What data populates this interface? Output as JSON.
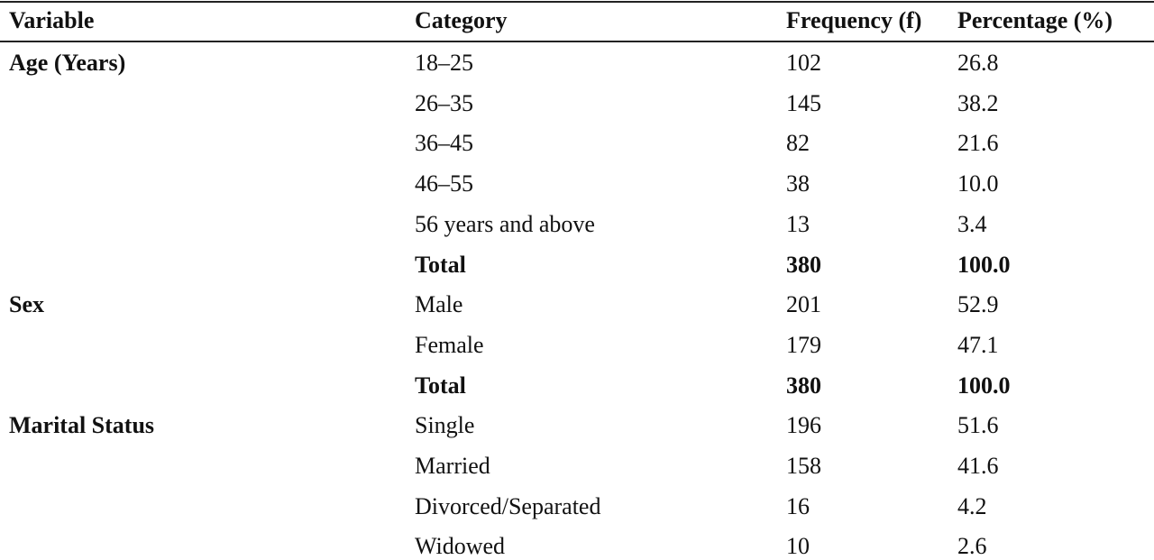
{
  "table": {
    "header": [
      "Variable",
      "Category",
      "Frequency (f)",
      "Percentage (%)"
    ],
    "rows": [
      {
        "variable": "Age (Years)",
        "category": "18–25",
        "frequency": 102,
        "percentage": "26.8"
      },
      {
        "category": "26–35",
        "frequency": 145,
        "percentage": "38.2"
      },
      {
        "category": "36–45",
        "frequency": 82,
        "percentage": "21.6"
      },
      {
        "category": "46–55",
        "frequency": 38,
        "percentage": "10.0"
      },
      {
        "category": "56 years and above",
        "frequency": 13,
        "percentage": "3.4"
      },
      {
        "category": "Total",
        "frequency": 380,
        "percentage": "100.0"
      },
      {
        "variable": "Sex",
        "category": "Male",
        "frequency": 201,
        "percentage": "52.9"
      },
      {
        "category": "Female",
        "frequency": 179,
        "percentage": "47.1"
      },
      {
        "category": "Total",
        "frequency": 380,
        "percentage": "100.0"
      },
      {
        "variable": "Marital Status",
        "category": "Single",
        "frequency": 196,
        "percentage": "51.6"
      },
      {
        "category": "Married",
        "frequency": 158,
        "percentage": "41.6"
      },
      {
        "category": "Divorced/Separated",
        "frequency": 16,
        "percentage": "4.2"
      },
      {
        "category": "Widowed",
        "frequency": 10,
        "percentage": "2.6"
      }
    ]
  }
}
